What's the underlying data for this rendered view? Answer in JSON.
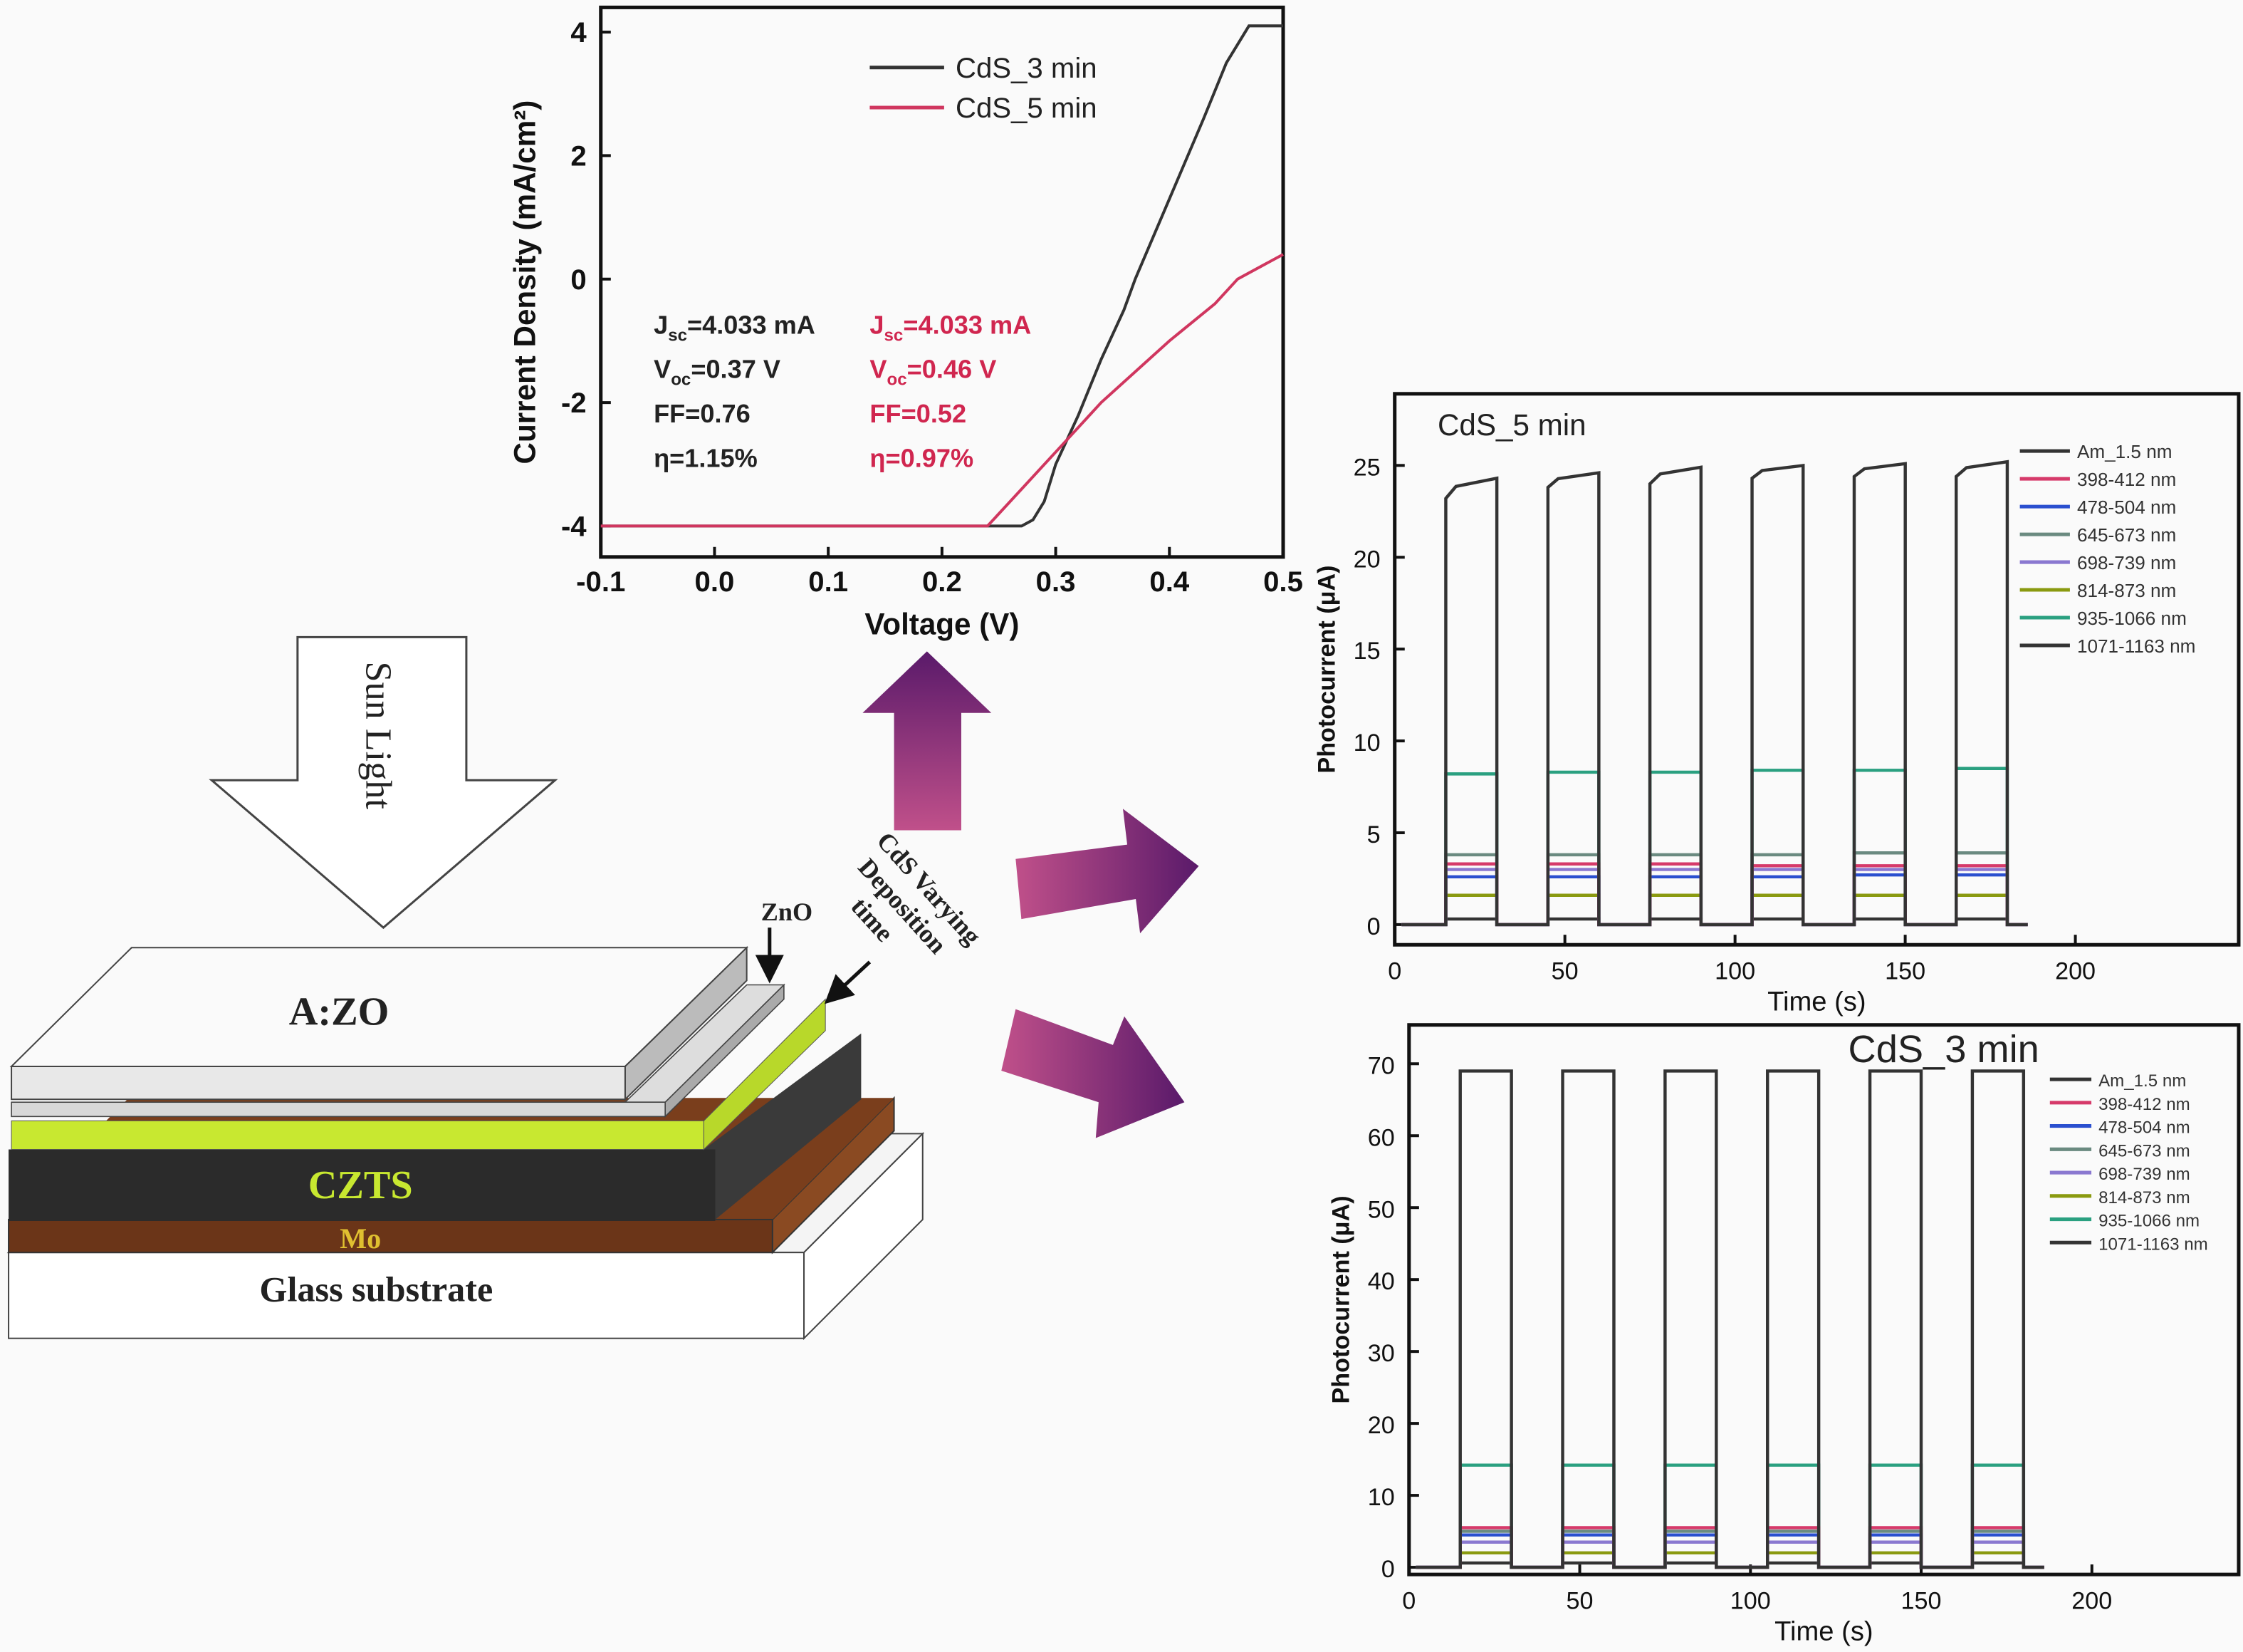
{
  "diagram": {
    "sun_light": "Sun Light",
    "layers": {
      "azo": "A:ZO",
      "zno": "ZnO",
      "czts": "CZTS",
      "mo": "Mo",
      "glass": "Glass substrate"
    },
    "annotation_lines": [
      "CdS Varying",
      "Deposition",
      "time"
    ],
    "colors": {
      "cds": "#c8e830",
      "czts": "#2b2b2b",
      "mo": "#6b3518",
      "arrow_from": "#c0508a",
      "arrow_to": "#5a1a6a"
    }
  },
  "chart_data": [
    {
      "type": "line",
      "xlabel": "Voltage (V)",
      "ylabel": "Current Density (mA/cm²)",
      "xlim": [
        -0.1,
        0.5
      ],
      "ylim": [
        -4.5,
        4.4
      ],
      "xticks": [
        "-0.1",
        "0.0",
        "0.1",
        "0.2",
        "0.3",
        "0.4",
        "0.5"
      ],
      "yticks": [
        "-4",
        "-2",
        "0",
        "2",
        "4"
      ],
      "legend_position": "top-right",
      "series": [
        {
          "name": "CdS_3 min",
          "color": "#333333",
          "x": [
            -0.1,
            0.27,
            0.28,
            0.29,
            0.3,
            0.32,
            0.34,
            0.36,
            0.37,
            0.4,
            0.43,
            0.45,
            0.47,
            0.5
          ],
          "y": [
            -4.0,
            -4.0,
            -3.9,
            -3.6,
            -3.0,
            -2.2,
            -1.3,
            -0.5,
            0.0,
            1.3,
            2.6,
            3.5,
            4.1,
            4.1
          ]
        },
        {
          "name": "CdS_5 min",
          "color": "#d0365f",
          "x": [
            -0.1,
            0.24,
            0.26,
            0.3,
            0.34,
            0.4,
            0.44,
            0.46,
            0.5
          ],
          "y": [
            -4.0,
            -4.0,
            -3.6,
            -2.8,
            -2.0,
            -1.0,
            -0.4,
            0.0,
            0.4
          ]
        }
      ],
      "annotations": [
        {
          "color": "#222222",
          "lines": [
            {
              "main": "J",
              "sub": "sc",
              "rest": "=4.033 mA"
            },
            {
              "main": "V",
              "sub": "oc",
              "rest": "=0.37 V"
            },
            {
              "main": "FF=0.76",
              "sub": "",
              "rest": ""
            },
            {
              "main": "η=1.15%",
              "sub": "",
              "rest": ""
            }
          ]
        },
        {
          "color": "#d0264f",
          "lines": [
            {
              "main": "J",
              "sub": "sc",
              "rest": "=4.033 mA"
            },
            {
              "main": "V",
              "sub": "oc",
              "rest": "=0.46 V"
            },
            {
              "main": "FF=0.52",
              "sub": "",
              "rest": ""
            },
            {
              "main": "η=0.97%",
              "sub": "",
              "rest": ""
            }
          ]
        }
      ]
    },
    {
      "type": "line",
      "title": "CdS_5 min",
      "xlabel": "Time (s)",
      "ylabel": "Photocurrent (μA)",
      "xlim": [
        0,
        248
      ],
      "ylim": [
        -1.1,
        28.9
      ],
      "xticks": [
        0,
        50,
        100,
        150,
        200
      ],
      "yticks": [
        0,
        5,
        10,
        15,
        20,
        25
      ],
      "legend_position": "top-right",
      "on_intervals": [
        [
          15,
          30
        ],
        [
          45,
          60
        ],
        [
          75,
          90
        ],
        [
          105,
          120
        ],
        [
          135,
          150
        ],
        [
          165,
          180
        ]
      ],
      "series": [
        {
          "name": "Am_1.5 nm",
          "color": "#333333",
          "on_values": [
            24.3,
            24.6,
            24.9,
            25.0,
            25.1,
            25.2
          ],
          "start_values": [
            23.2,
            23.8,
            24.0,
            24.3,
            24.4,
            24.4
          ]
        },
        {
          "name": "398-412 nm",
          "color": "#d63a6a",
          "on_values": [
            3.3,
            3.3,
            3.3,
            3.2,
            3.2,
            3.2
          ]
        },
        {
          "name": "478-504 nm",
          "color": "#2a4fcf",
          "on_values": [
            2.6,
            2.6,
            2.6,
            2.6,
            2.7,
            2.7
          ]
        },
        {
          "name": "645-673 nm",
          "color": "#6a8a80",
          "on_values": [
            3.8,
            3.8,
            3.8,
            3.8,
            3.9,
            3.9
          ]
        },
        {
          "name": "698-739 nm",
          "color": "#8a78d0",
          "on_values": [
            3.0,
            3.0,
            3.0,
            3.0,
            3.0,
            3.0
          ]
        },
        {
          "name": "814-873 nm",
          "color": "#8a9a10",
          "on_values": [
            1.6,
            1.6,
            1.6,
            1.6,
            1.6,
            1.6
          ]
        },
        {
          "name": "935-1066 nm",
          "color": "#2aa080",
          "on_values": [
            8.2,
            8.3,
            8.3,
            8.4,
            8.4,
            8.5
          ]
        },
        {
          "name": "1071-1163 nm",
          "color": "#333333",
          "on_values": [
            0.3,
            0.3,
            0.3,
            0.3,
            0.3,
            0.3
          ]
        }
      ]
    },
    {
      "type": "line",
      "title": "CdS_3 min",
      "xlabel": "Time (s)",
      "ylabel": "Photocurrent (μA)",
      "xlim": [
        0,
        243
      ],
      "ylim": [
        -1,
        75.4
      ],
      "xticks": [
        0,
        50,
        100,
        150,
        200
      ],
      "yticks": [
        0,
        10,
        20,
        30,
        40,
        50,
        60,
        70
      ],
      "legend_position": "top-right",
      "on_intervals": [
        [
          15,
          30
        ],
        [
          45,
          60
        ],
        [
          75,
          90
        ],
        [
          105,
          120
        ],
        [
          135,
          150
        ],
        [
          165,
          180
        ]
      ],
      "series": [
        {
          "name": "Am_1.5 nm",
          "color": "#333333",
          "on_values": [
            69,
            69,
            69,
            69,
            69,
            69
          ]
        },
        {
          "name": "398-412 nm",
          "color": "#d63a6a",
          "on_values": [
            5.5,
            5.5,
            5.5,
            5.5,
            5.5,
            5.5
          ]
        },
        {
          "name": "478-504 nm",
          "color": "#2a4fcf",
          "on_values": [
            4.5,
            4.5,
            4.5,
            4.5,
            4.5,
            4.5
          ]
        },
        {
          "name": "645-673 nm",
          "color": "#6a8a80",
          "on_values": [
            5.0,
            5.0,
            5.0,
            5.0,
            5.0,
            5.0
          ]
        },
        {
          "name": "698-739 nm",
          "color": "#8a78d0",
          "on_values": [
            3.5,
            3.5,
            3.5,
            3.5,
            3.5,
            3.5
          ]
        },
        {
          "name": "814-873 nm",
          "color": "#8a9a10",
          "on_values": [
            2.0,
            2.0,
            2.0,
            2.0,
            2.0,
            2.0
          ]
        },
        {
          "name": "935-1066 nm",
          "color": "#2aa080",
          "on_values": [
            14.2,
            14.2,
            14.2,
            14.2,
            14.2,
            14.2
          ]
        },
        {
          "name": "1071-1163 nm",
          "color": "#333333",
          "on_values": [
            0.6,
            0.6,
            0.6,
            0.6,
            0.6,
            0.6
          ]
        }
      ]
    }
  ]
}
